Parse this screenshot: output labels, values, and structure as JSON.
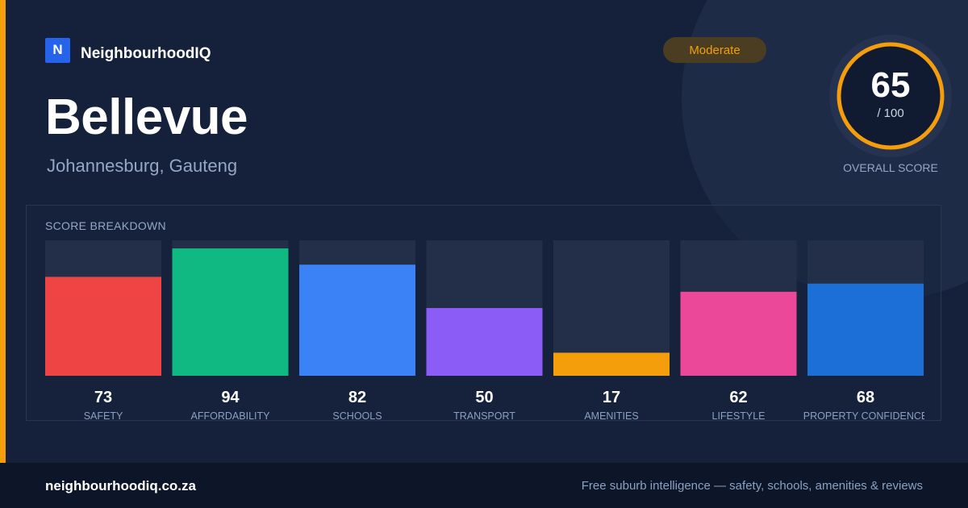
{
  "brand": {
    "logo_letter": "N",
    "name": "NeighbourhoodIQ",
    "logo_color": "#2563eb"
  },
  "suburb": {
    "name": "Bellevue",
    "location": "Johannesburg, Gauteng"
  },
  "badge": {
    "label": "Moderate",
    "color": "#f59e0b"
  },
  "overall": {
    "score": "65",
    "max_label": "/ 100",
    "caption": "OVERALL SCORE",
    "score_value": 65,
    "max_value": 100,
    "ring_color": "#f59e0b"
  },
  "breakdown": {
    "title": "SCORE BREAKDOWN"
  },
  "footer": {
    "domain": "neighbourhoodiq.co.za",
    "tagline": "Free suburb intelligence — safety, schools, amenities & reviews"
  },
  "chart_data": {
    "type": "bar",
    "title": "SCORE BREAKDOWN",
    "categories": [
      "SAFETY",
      "AFFORDABILITY",
      "SCHOOLS",
      "TRANSPORT",
      "AMENITIES",
      "LIFESTYLE",
      "PROPERTY CONFIDENCE"
    ],
    "values": [
      73,
      94,
      82,
      50,
      17,
      62,
      68
    ],
    "colors": [
      "#ef4444",
      "#10b981",
      "#3b82f6",
      "#8b5cf6",
      "#f59e0b",
      "#ec4899",
      "#1d6fd8"
    ],
    "ylim": [
      0,
      100
    ],
    "grid": false
  }
}
